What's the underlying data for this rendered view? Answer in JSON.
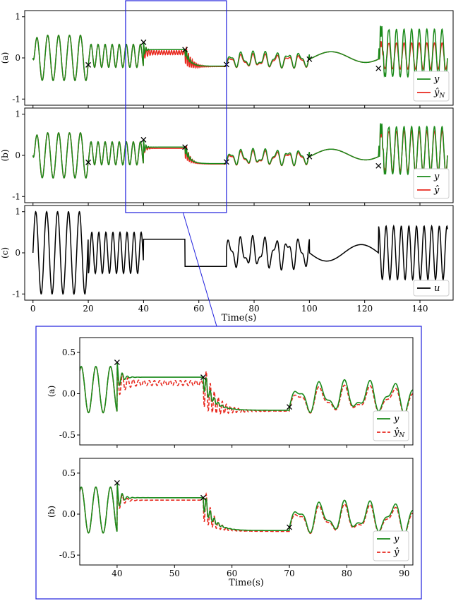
{
  "chart_data": [
    {
      "panel": "(a)",
      "type": "line",
      "xlim": [
        -3,
        152
      ],
      "ylim": [
        -1.15,
        1.15
      ],
      "yticks": [
        -1,
        0,
        1
      ],
      "xticks": [],
      "legend_position": "bottom-right",
      "series": [
        {
          "name": "y",
          "color": "#1a8a1a",
          "style": "solid"
        },
        {
          "name": "ŷ_N",
          "color": "#e8281e",
          "style": "solid"
        }
      ],
      "markers_x": [
        20,
        40,
        55,
        70,
        100,
        125
      ]
    },
    {
      "panel": "(b)",
      "type": "line",
      "xlim": [
        -3,
        152
      ],
      "ylim": [
        -1.15,
        1.15
      ],
      "yticks": [
        -1,
        0,
        1
      ],
      "xticks": [],
      "legend_position": "bottom-right",
      "series": [
        {
          "name": "y",
          "color": "#1a8a1a",
          "style": "solid"
        },
        {
          "name": "ŷ",
          "color": "#e8281e",
          "style": "solid"
        }
      ],
      "markers_x": [
        20,
        40,
        55,
        70,
        100,
        125
      ]
    },
    {
      "panel": "(c)",
      "type": "line",
      "xlim": [
        -3,
        152
      ],
      "ylim": [
        -1.15,
        1.15
      ],
      "yticks": [
        -1,
        0,
        1
      ],
      "xticks": [
        0,
        20,
        40,
        60,
        80,
        100,
        120,
        140
      ],
      "xlabel": "Time(s)",
      "legend_position": "bottom-right",
      "series": [
        {
          "name": "u",
          "color": "#000000",
          "style": "solid"
        }
      ]
    },
    {
      "panel": "(a)",
      "type": "line",
      "xlim": [
        33.5,
        91.5
      ],
      "ylim": [
        -0.62,
        0.68
      ],
      "yticks": [
        -0.5,
        0.0,
        0.5
      ],
      "xticks": [],
      "legend_position": "bottom-right",
      "series": [
        {
          "name": "y",
          "color": "#1a8a1a",
          "style": "solid"
        },
        {
          "name": "ŷ_N",
          "color": "#e8281e",
          "style": "dashed"
        }
      ],
      "markers_x": [
        40,
        55,
        70
      ]
    },
    {
      "panel": "(b)",
      "type": "line",
      "xlim": [
        33.5,
        91.5
      ],
      "ylim": [
        -0.62,
        0.68
      ],
      "yticks": [
        -0.5,
        0.0,
        0.5
      ],
      "xticks": [
        40,
        50,
        60,
        70,
        80,
        90
      ],
      "xlabel": "Time(s)",
      "legend_position": "bottom-right",
      "series": [
        {
          "name": "y",
          "color": "#1a8a1a",
          "style": "solid"
        },
        {
          "name": "ŷ",
          "color": "#e8281e",
          "style": "dashed"
        }
      ],
      "markers_x": [
        40,
        55,
        70
      ]
    }
  ],
  "zoom_region": {
    "x": [
      33.5,
      70
    ],
    "note_color": "#1f1fdd"
  }
}
